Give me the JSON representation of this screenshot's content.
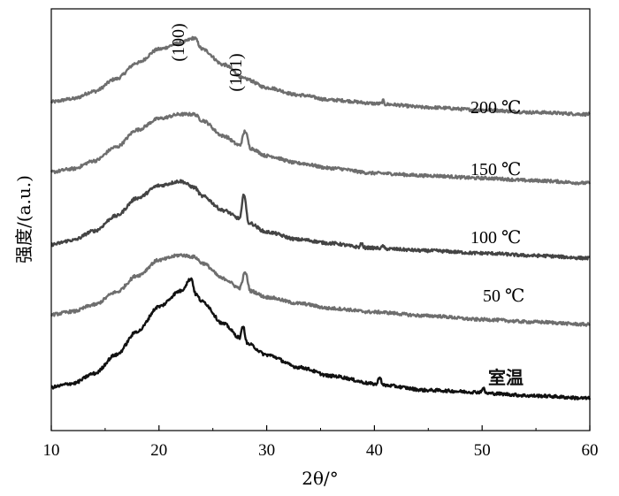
{
  "chart_data": {
    "type": "line",
    "xlabel": "2θ/°",
    "ylabel": "强度/(a.u.)",
    "xlim": [
      10,
      60
    ],
    "xticks": [
      10,
      20,
      30,
      40,
      50,
      60
    ],
    "grid": false,
    "legend": "none",
    "annotations": [
      {
        "text": "(100)",
        "x": 23.3
      },
      {
        "text": "(101)",
        "x": 28.0
      }
    ],
    "series": [
      {
        "name": "200 ℃",
        "color": "#6e6e6e",
        "baseline": 0.0,
        "slope": 0.0,
        "hump": {
          "center": 22.5,
          "height": 0.0,
          "width": 0.0
        },
        "peaks": [],
        "offset": 4.55,
        "shape": [
          [
            10,
            0.15
          ],
          [
            12,
            0.2
          ],
          [
            14,
            0.32
          ],
          [
            16,
            0.52
          ],
          [
            18,
            0.78
          ],
          [
            20,
            1.0
          ],
          [
            22,
            1.1
          ],
          [
            23.3,
            1.18
          ],
          [
            24,
            1.0
          ],
          [
            26,
            0.75
          ],
          [
            28,
            0.52
          ],
          [
            30,
            0.38
          ],
          [
            33,
            0.26
          ],
          [
            36,
            0.18
          ],
          [
            40.6,
            0.12
          ],
          [
            40.8,
            0.17
          ],
          [
            41.0,
            0.11
          ],
          [
            45,
            0.06
          ],
          [
            50,
            0.02
          ],
          [
            55,
            -0.02
          ],
          [
            60,
            -0.05
          ]
        ]
      },
      {
        "name": "150 ℃",
        "color": "#6e6e6e",
        "offset": 3.45,
        "shape": [
          [
            10,
            0.12
          ],
          [
            12,
            0.17
          ],
          [
            14,
            0.3
          ],
          [
            16,
            0.52
          ],
          [
            18,
            0.8
          ],
          [
            20,
            0.98
          ],
          [
            22,
            1.05
          ],
          [
            23.3,
            1.05
          ],
          [
            24,
            0.95
          ],
          [
            26,
            0.7
          ],
          [
            27.5,
            0.55
          ],
          [
            28.0,
            0.78
          ],
          [
            28.5,
            0.5
          ],
          [
            30,
            0.38
          ],
          [
            33,
            0.26
          ],
          [
            36,
            0.18
          ],
          [
            40,
            0.1
          ],
          [
            45,
            0.06
          ],
          [
            50,
            0.02
          ],
          [
            55,
            -0.02
          ],
          [
            60,
            -0.06
          ]
        ]
      },
      {
        "name": "100 ℃",
        "color": "#444444",
        "offset": 2.3,
        "shape": [
          [
            10,
            0.1
          ],
          [
            12,
            0.17
          ],
          [
            14,
            0.32
          ],
          [
            16,
            0.56
          ],
          [
            18,
            0.85
          ],
          [
            20,
            1.05
          ],
          [
            22,
            1.12
          ],
          [
            23.3,
            1.02
          ],
          [
            24,
            0.88
          ],
          [
            26,
            0.65
          ],
          [
            27.5,
            0.52
          ],
          [
            27.9,
            0.92
          ],
          [
            28.3,
            0.45
          ],
          [
            30,
            0.3
          ],
          [
            33,
            0.18
          ],
          [
            36,
            0.12
          ],
          [
            38.6,
            0.06
          ],
          [
            38.8,
            0.13
          ],
          [
            39.0,
            0.05
          ],
          [
            40.6,
            0.04
          ],
          [
            40.8,
            0.08
          ],
          [
            41.0,
            0.03
          ],
          [
            45,
            0.0
          ],
          [
            50,
            -0.04
          ],
          [
            55,
            -0.08
          ],
          [
            60,
            -0.12
          ]
        ]
      },
      {
        "name": "50 ℃",
        "color": "#6e6e6e",
        "offset": 1.25,
        "shape": [
          [
            10,
            0.02
          ],
          [
            12,
            0.07
          ],
          [
            14,
            0.18
          ],
          [
            16,
            0.38
          ],
          [
            18,
            0.65
          ],
          [
            20,
            0.9
          ],
          [
            22,
            0.98
          ],
          [
            23.3,
            0.95
          ],
          [
            24,
            0.85
          ],
          [
            26,
            0.6
          ],
          [
            27.5,
            0.45
          ],
          [
            28.0,
            0.7
          ],
          [
            28.5,
            0.4
          ],
          [
            30,
            0.3
          ],
          [
            33,
            0.2
          ],
          [
            36,
            0.12
          ],
          [
            40,
            0.06
          ],
          [
            45,
            0.0
          ],
          [
            50,
            -0.06
          ],
          [
            55,
            -0.1
          ],
          [
            60,
            -0.14
          ]
        ]
      },
      {
        "name": "室温",
        "color": "#111111",
        "offset": 0.0,
        "shape": [
          [
            10,
            0.1
          ],
          [
            12,
            0.16
          ],
          [
            14,
            0.32
          ],
          [
            16,
            0.62
          ],
          [
            18,
            1.0
          ],
          [
            20,
            1.4
          ],
          [
            22,
            1.65
          ],
          [
            23.0,
            1.85
          ],
          [
            23.4,
            1.6
          ],
          [
            24,
            1.48
          ],
          [
            26,
            1.12
          ],
          [
            27.5,
            0.9
          ],
          [
            27.8,
            1.08
          ],
          [
            28.2,
            0.8
          ],
          [
            30,
            0.62
          ],
          [
            33,
            0.42
          ],
          [
            36,
            0.28
          ],
          [
            40.2,
            0.15
          ],
          [
            40.5,
            0.27
          ],
          [
            40.8,
            0.13
          ],
          [
            45,
            0.05
          ],
          [
            49.8,
            0.02
          ],
          [
            50.1,
            0.08
          ],
          [
            50.4,
            0.0
          ],
          [
            55,
            -0.04
          ],
          [
            60,
            -0.08
          ]
        ]
      }
    ]
  }
}
